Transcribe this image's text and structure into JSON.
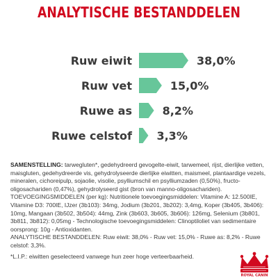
{
  "title": "ANALYTISCHE BESTANDDELEN",
  "chart_data": {
    "type": "bar",
    "categories": [
      "Ruw eiwit",
      "Ruw vet",
      "Ruwe as",
      "Ruwe celstof"
    ],
    "values": [
      38.0,
      15.0,
      8.2,
      3.3
    ],
    "value_labels": [
      "38,0%",
      "15,0%",
      "8,2%",
      "3,3%"
    ],
    "unit": "%",
    "bar_color": "#67c69a",
    "grid": false,
    "legend": "none"
  },
  "composition": {
    "label": "SAMENSTELLING:",
    "ingredients": "tarwegluten*, gedehydreerd gevogelte-eiwit, tarwemeel, rijst, dierlijke vetten, maisgluten, gedehydreerde vis, gehydrolyseerde dierlijke eiwitten, maismeel, plantaardige vezels, mineralen, cichoreipulp, sojaolie, visolie, psylliumschil en psylliumzaden (0,50%), fructo-oligosachariden (0,47%), gehydrolyseerd gist (bron van manno-oligosachariden).",
    "additives": "TOEVOEGINGSMIDDELEN (per kg): Nutritionele toevoegingsmiddelen: Vitamine A: 12.500IE, Vitamine D3: 700IE, IJzer (3b103): 34mg, Jodium (3b201, 3b202): 3,4mg, Koper (3b405, 3b406): 10mg, Mangaan (3b502, 3b504): 44mg, Zink (3b603, 3b605, 3b606): 126mg, Selenium (3b801, 3b811, 3b812): 0,05mg - Technologische toevoegingsmiddelen: Clinoptiloliet van sedimentaire oorsprong: 10g - Antioxidanten.",
    "analytical": "ANALYTISCHE BESTANDDELEN: Ruw eiwit: 38,0% - Ruw vet: 15,0% - Ruwe as: 8,2% - Ruwe celstof: 3,3%."
  },
  "footnote": "*L.I.P.: eiwitten geselecteerd vanwege hun zeer hoge verteerbaarheid.",
  "logo": {
    "brand_text": "ROYAL CANIN",
    "crown_color": "#d10a1f"
  }
}
